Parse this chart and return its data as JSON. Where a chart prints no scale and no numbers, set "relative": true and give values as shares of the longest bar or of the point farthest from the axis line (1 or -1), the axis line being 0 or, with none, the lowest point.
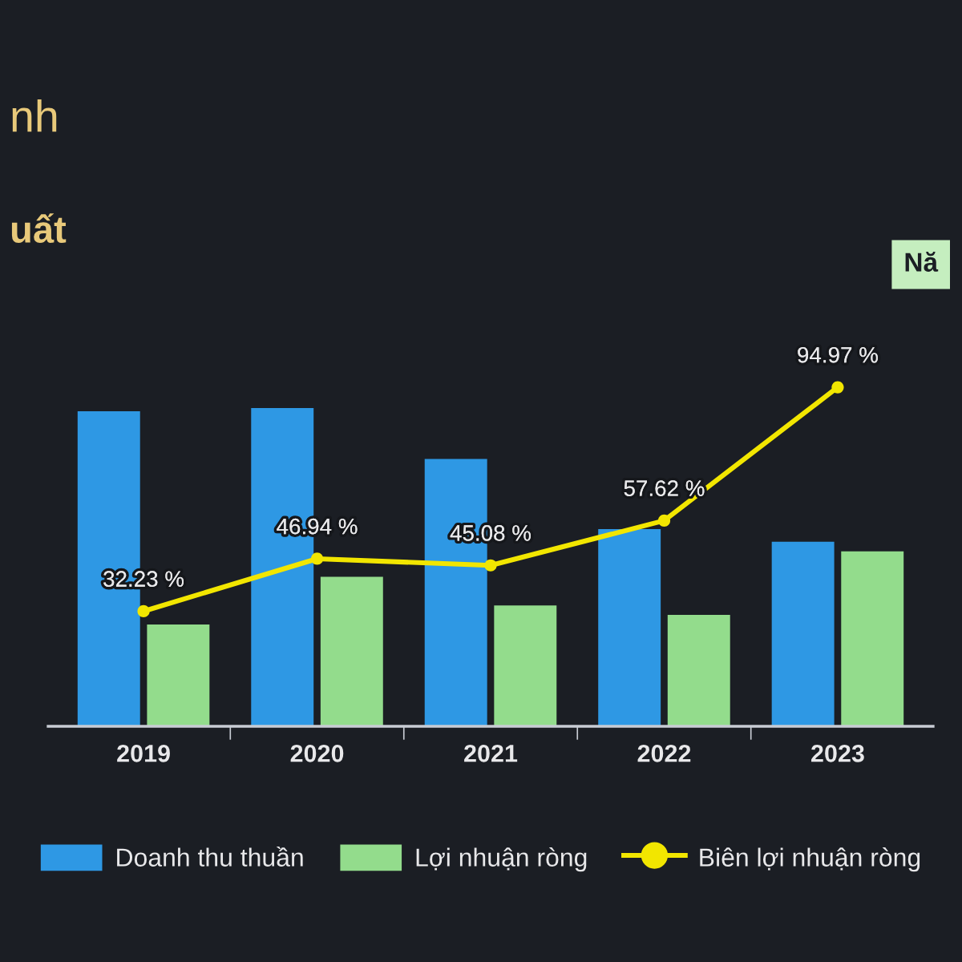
{
  "chart_data": [
    {
      "type": "bar",
      "title": "nh",
      "subtitle": "uất",
      "annotations": [
        "Nă"
      ],
      "categories": [
        "2019",
        "2020",
        "2021",
        "2022",
        "2023"
      ],
      "relative": true,
      "series": [
        {
          "name": "Doanh thu thuần",
          "color": "#2e98e4",
          "values": [
            0.99,
            1,
            0.84,
            0.62,
            0.58
          ]
        },
        {
          "name": "Lợi nhuận ròng",
          "color": "#93dc8c",
          "values": [
            0.32,
            0.47,
            0.38,
            0.35,
            0.55
          ]
        }
      ],
      "legend": "bottom",
      "tick_labels": "x"
    },
    {
      "type": "line",
      "categories": [
        "2019",
        "2020",
        "2021",
        "2022",
        "2023"
      ],
      "series": [
        {
          "name": "Biên lợi nhuận ròng",
          "color": "#f2e600",
          "values": [
            32.23,
            46.94,
            45.08,
            57.62,
            94.97
          ],
          "value_labels": [
            "32.23 %",
            "46.94 %",
            "45.08 %",
            "57.62 %",
            "94.97 %"
          ]
        }
      ],
      "marker": "circle",
      "legend": "bottom",
      "tick_labels": false
    }
  ]
}
